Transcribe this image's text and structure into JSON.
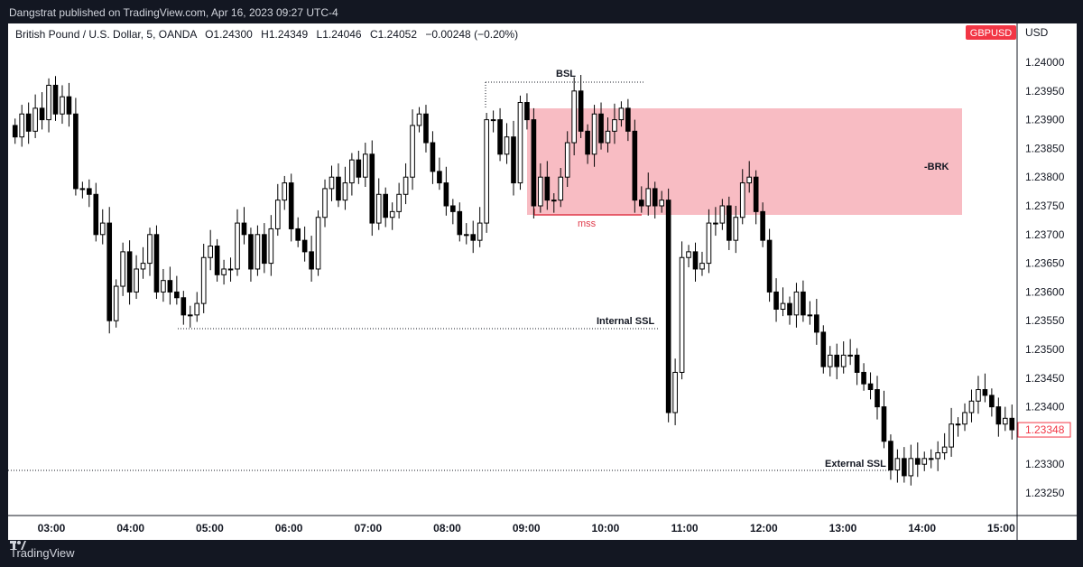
{
  "publisher_line": "Dangstrat published on TradingView.com, Apr 16, 2023 09:27 UTC-4",
  "footer_brand": "TradingView",
  "header": {
    "symbol": "British Pound / U.S. Dollar, 5, OANDA",
    "open": "O1.24300",
    "high": "H1.24349",
    "low": "L1.24046",
    "close": "C1.24052",
    "change": "−0.00248 (−0.20%)",
    "symbol_badge": "GBPUSD",
    "currency": "USD"
  },
  "colors": {
    "up_candle_fill": "#ffffff",
    "down_candle_fill": "#000000",
    "zone_fill": "#f8bcc3",
    "mss_line": "#e03a4a",
    "badge": "#f23645",
    "price_label_border": "#f23645"
  },
  "chart_data": {
    "type": "candlestick",
    "xlabel": "",
    "ylabel": "",
    "x_ticks": [
      "03:00",
      "04:00",
      "05:00",
      "06:00",
      "07:00",
      "08:00",
      "09:00",
      "10:00",
      "11:00",
      "12:00",
      "13:00",
      "14:00",
      "15:00"
    ],
    "y_ticks": [
      "1.24000",
      "1.23950",
      "1.23900",
      "1.23850",
      "1.23800",
      "1.23750",
      "1.23700",
      "1.23650",
      "1.23600",
      "1.23550",
      "1.23500",
      "1.23450",
      "1.23400",
      "1.23300",
      "1.23250"
    ],
    "ylim": [
      1.2321,
      1.2405
    ],
    "last_price": "1.23348",
    "grid": false,
    "closes": [
      1.2387,
      1.2391,
      1.2388,
      1.2392,
      1.239,
      1.2396,
      1.2391,
      1.2394,
      1.2391,
      1.2378,
      1.2378,
      1.2377,
      1.237,
      1.2372,
      1.2355,
      1.2361,
      1.2367,
      1.236,
      1.2364,
      1.2365,
      1.237,
      1.236,
      1.2362,
      1.236,
      1.2359,
      1.2356,
      1.2356,
      1.2358,
      1.2366,
      1.2368,
      1.2363,
      1.2364,
      1.2364,
      1.2372,
      1.237,
      1.2364,
      1.237,
      1.2365,
      1.2371,
      1.2376,
      1.2379,
      1.2371,
      1.2369,
      1.2367,
      1.2364,
      1.2373,
      1.2378,
      1.238,
      1.2376,
      1.2379,
      1.2383,
      1.238,
      1.2384,
      1.2372,
      1.2377,
      1.2373,
      1.2374,
      1.2377,
      1.238,
      1.2389,
      1.2391,
      1.2386,
      1.2381,
      1.2379,
      1.2375,
      1.2374,
      1.237,
      1.237,
      1.2369,
      1.2372,
      1.239,
      1.239,
      1.2384,
      1.2387,
      1.2379,
      1.2393,
      1.239,
      1.2375,
      1.238,
      1.2376,
      1.2376,
      1.238,
      1.2386,
      1.2395,
      1.2388,
      1.2384,
      1.2391,
      1.2386,
      1.2388,
      1.239,
      1.2392,
      1.2388,
      1.2376,
      1.2375,
      1.2378,
      1.2375,
      1.2376,
      1.2339,
      1.2346,
      1.2366,
      1.2367,
      1.2364,
      1.2365,
      1.2372,
      1.2372,
      1.2375,
      1.2369,
      1.2373,
      1.2379,
      1.238,
      1.2374,
      1.2369,
      1.236,
      1.2357,
      1.2358,
      1.2356,
      1.236,
      1.2356,
      1.2356,
      1.2353,
      1.2347,
      1.2349,
      1.2347,
      1.2349,
      1.2349,
      1.2346,
      1.2344,
      1.2343,
      1.234,
      1.2334,
      1.2329,
      1.2331,
      1.2328,
      1.2331,
      1.233,
      1.2331,
      1.2331,
      1.2332,
      1.2333,
      1.2337,
      1.2337,
      1.2339,
      1.2341,
      1.2343,
      1.2342,
      1.234,
      1.2337,
      1.2338,
      1.2336
    ],
    "annotations": [
      {
        "label": "BSL",
        "price": 1.23968
      },
      {
        "label": "-BRK",
        "price": 1.23826
      },
      {
        "label": "mss",
        "price": 1.23735
      },
      {
        "label": "Internal SSL",
        "price": 1.23538
      },
      {
        "label": "External SSL",
        "price": 1.23289
      }
    ],
    "zone": {
      "price_top": 1.2392,
      "price_bottom": 1.23735
    }
  }
}
